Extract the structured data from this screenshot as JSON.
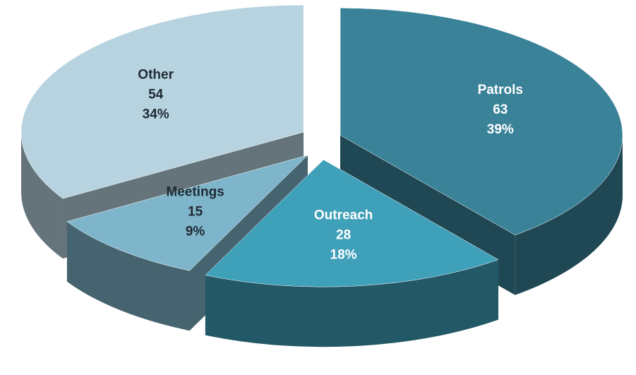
{
  "chart_data": {
    "type": "pie",
    "categories": [
      "Patrols",
      "Outreach",
      "Meetings",
      "Other"
    ],
    "values": [
      63,
      28,
      15,
      54
    ],
    "percent_labels": [
      "39%",
      "18%",
      "9%",
      "34%"
    ],
    "colors": [
      "#3a8298",
      "#3fa0b9",
      "#7fb5ca",
      "#b7d3df"
    ],
    "exploded": true
  }
}
